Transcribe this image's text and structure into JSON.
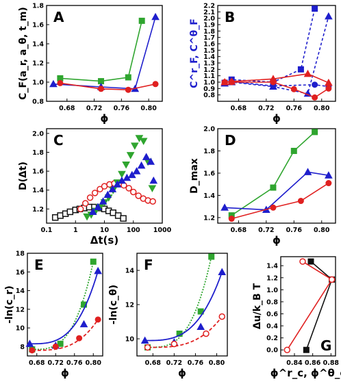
{
  "chart_data": [
    {
      "panel": "A",
      "type": "line",
      "ylabel": "C_F(a_r, a_θ, t_m)",
      "xlabel": "ϕ",
      "xlim": [
        0.65,
        0.82
      ],
      "ylim": [
        0.8,
        1.8
      ],
      "xticks": [
        "0.68",
        "0.72",
        "0.76",
        "0.80"
      ],
      "yticks": [
        "0.8",
        "1.0",
        "1.2",
        "1.4",
        "1.6",
        "1.8"
      ],
      "series": [
        {
          "color": "#2fa52f",
          "marker": "square",
          "x": [
            0.67,
            0.73,
            0.77,
            0.79
          ],
          "y": [
            1.04,
            1.01,
            1.05,
            1.64
          ]
        },
        {
          "color": "#1e1ecc",
          "marker": "triangle",
          "x": [
            0.66,
            0.73,
            0.78,
            0.81
          ],
          "y": [
            0.98,
            0.95,
            0.93,
            1.68
          ]
        },
        {
          "color": "#e02020",
          "marker": "circle",
          "x": [
            0.67,
            0.73,
            0.77,
            0.81
          ],
          "y": [
            0.99,
            0.93,
            0.92,
            0.98
          ]
        }
      ]
    },
    {
      "panel": "B",
      "type": "line",
      "ylabel": "C^r_F, C^θ_F",
      "xlabel": "ϕ",
      "xlim": [
        0.65,
        0.82
      ],
      "ylim": [
        0.7,
        2.2
      ],
      "xticks": [
        "0.68",
        "0.72",
        "0.76",
        "0.80"
      ],
      "yticks": [
        "0.8",
        "0.9",
        "1.0",
        "1.1",
        "1.2",
        "1.3",
        "1.4",
        "1.5",
        "1.6",
        "1.7",
        "1.8",
        "1.9",
        "2.0",
        "2.1",
        "2.2"
      ],
      "series": [
        {
          "color": "#1e1ecc",
          "marker": "square",
          "dashed": true,
          "x": [
            0.66,
            0.67,
            0.73,
            0.77,
            0.79
          ],
          "y": [
            0.99,
            1.04,
            1.0,
            1.2,
            2.15
          ]
        },
        {
          "color": "#1e1ecc",
          "marker": "triangle",
          "dashed": true,
          "x": [
            0.66,
            0.67,
            0.73,
            0.78,
            0.81
          ],
          "y": [
            0.98,
            1.0,
            0.93,
            0.82,
            2.03
          ]
        },
        {
          "color": "#1e1ecc",
          "marker": "circle",
          "dashed": true,
          "x": [
            0.67,
            0.73,
            0.79,
            0.81
          ],
          "y": [
            1.01,
            0.94,
            0.96,
            0.93
          ]
        },
        {
          "color": "#e02020",
          "marker": "triangle",
          "dashed": false,
          "x": [
            0.66,
            0.67,
            0.73,
            0.78,
            0.81
          ],
          "y": [
            1.0,
            1.01,
            1.05,
            1.13,
            0.99
          ]
        },
        {
          "color": "#e02020",
          "marker": "circle",
          "dashed": false,
          "x": [
            0.66,
            0.67,
            0.73,
            0.76,
            0.79,
            0.81
          ],
          "y": [
            1.0,
            1.0,
            1.0,
            0.89,
            0.76,
            0.9
          ]
        }
      ]
    },
    {
      "panel": "C",
      "type": "scatter",
      "ylabel": "D(Δt)",
      "xlabel": "Δt(s)",
      "xscale": "log",
      "xlim": [
        0.1,
        1000
      ],
      "ylim": [
        1.05,
        2.05
      ],
      "xticks": [
        "0.1",
        "1",
        "10",
        "100",
        "1000"
      ],
      "yticks": [
        "1.2",
        "1.4",
        "1.6",
        "1.8",
        "2.0"
      ],
      "series": [
        {
          "color": "#111111",
          "marker": "square-open",
          "x": [
            0.2,
            0.3,
            0.45,
            0.65,
            1.0,
            1.4,
            2.0,
            3.0,
            4.5,
            6.5,
            10,
            14,
            20,
            30,
            45
          ],
          "y": [
            1.11,
            1.13,
            1.15,
            1.17,
            1.19,
            1.2,
            1.21,
            1.22,
            1.22,
            1.21,
            1.2,
            1.18,
            1.16,
            1.13,
            1.1
          ]
        },
        {
          "color": "#e02020",
          "marker": "circle-open",
          "x": [
            1.5,
            2.2,
            3.2,
            4.7,
            7,
            10,
            15,
            22,
            32,
            47,
            70,
            100,
            150,
            220,
            320,
            470
          ],
          "y": [
            1.2,
            1.26,
            1.32,
            1.37,
            1.41,
            1.44,
            1.46,
            1.47,
            1.47,
            1.45,
            1.42,
            1.38,
            1.34,
            1.31,
            1.29,
            1.28
          ]
        },
        {
          "color": "#2fa52f",
          "marker": "triangle-down",
          "x": [
            2.5,
            3.5,
            5,
            7,
            10,
            14,
            20,
            28,
            40,
            56,
            80,
            112,
            160,
            225,
            320,
            450
          ],
          "y": [
            1.12,
            1.14,
            1.18,
            1.22,
            1.27,
            1.32,
            1.4,
            1.48,
            1.57,
            1.67,
            1.77,
            1.87,
            1.95,
            1.92,
            1.7,
            1.42
          ]
        },
        {
          "color": "#1e1ecc",
          "marker": "triangle",
          "x": [
            4,
            6,
            9,
            13,
            19,
            28,
            40,
            60,
            90,
            130,
            190,
            280,
            400,
            500
          ],
          "y": [
            1.17,
            1.22,
            1.28,
            1.35,
            1.41,
            1.46,
            1.5,
            1.53,
            1.56,
            1.6,
            1.66,
            1.75,
            1.7,
            1.5
          ]
        }
      ]
    },
    {
      "panel": "D",
      "type": "line",
      "ylabel": "D_max",
      "xlabel": "ϕ",
      "xlim": [
        0.65,
        0.82
      ],
      "ylim": [
        1.15,
        2.0
      ],
      "xticks": [
        "0.68",
        "0.72",
        "0.76",
        "0.80"
      ],
      "yticks": [
        "1.2",
        "1.4",
        "1.6",
        "1.8",
        "2.0"
      ],
      "series": [
        {
          "color": "#2fa52f",
          "marker": "square",
          "x": [
            0.67,
            0.73,
            0.76,
            0.79
          ],
          "y": [
            1.22,
            1.47,
            1.8,
            1.97
          ]
        },
        {
          "color": "#1e1ecc",
          "marker": "triangle",
          "x": [
            0.66,
            0.72,
            0.78,
            0.81
          ],
          "y": [
            1.29,
            1.27,
            1.61,
            1.58
          ]
        },
        {
          "color": "#e02020",
          "marker": "circle",
          "x": [
            0.67,
            0.73,
            0.77,
            0.81
          ],
          "y": [
            1.19,
            1.29,
            1.35,
            1.51
          ]
        }
      ]
    },
    {
      "panel": "E",
      "type": "scatter",
      "ylabel": "-ln(c_r)",
      "xlabel": "ϕ",
      "xlim": [
        0.66,
        0.82
      ],
      "ylim": [
        7,
        18
      ],
      "xticks": [
        "0.68",
        "0.72",
        "0.76",
        "0.80"
      ],
      "yticks": [
        "8",
        "10",
        "12",
        "14",
        "16",
        "18"
      ],
      "series": [
        {
          "color": "#2fa52f",
          "marker": "square",
          "fit": "dotted",
          "x": [
            0.67,
            0.73,
            0.78,
            0.8
          ],
          "y": [
            7.7,
            8.3,
            12.5,
            17.1
          ]
        },
        {
          "color": "#1e1ecc",
          "marker": "triangle",
          "fit": "solid",
          "x": [
            0.665,
            0.72,
            0.78,
            0.81
          ],
          "y": [
            8.3,
            8.1,
            10.4,
            16.1
          ]
        },
        {
          "color": "#e02020",
          "marker": "circle",
          "fit": "dashed",
          "x": [
            0.67,
            0.72,
            0.77,
            0.81
          ],
          "y": [
            7.6,
            8.0,
            8.9,
            10.9
          ]
        }
      ]
    },
    {
      "panel": "F",
      "type": "scatter",
      "ylabel": "-ln(c_θ)",
      "xlabel": "ϕ",
      "xlim": [
        0.65,
        0.82
      ],
      "ylim": [
        9,
        15
      ],
      "xticks": [
        "0.68",
        "0.72",
        "0.76",
        "0.80"
      ],
      "yticks": [
        "10",
        "12",
        "14"
      ],
      "series": [
        {
          "color": "#2fa52f",
          "marker": "square",
          "fit": "dotted",
          "x": [
            0.67,
            0.73,
            0.77,
            0.79
          ],
          "y": [
            9.5,
            10.3,
            11.6,
            14.8
          ]
        },
        {
          "color": "#1e1ecc",
          "marker": "triangle",
          "fit": "solid",
          "x": [
            0.665,
            0.72,
            0.77,
            0.81
          ],
          "y": [
            9.9,
            9.8,
            10.7,
            13.9
          ]
        },
        {
          "color": "#e02020",
          "marker": "circle-open",
          "fit": "dashed",
          "x": [
            0.67,
            0.72,
            0.78,
            0.81
          ],
          "y": [
            9.5,
            9.7,
            10.3,
            11.3
          ]
        }
      ]
    },
    {
      "panel": "G",
      "type": "line",
      "ylabel": "Δu/k_B T",
      "xlabel": "ϕ^r_c, ϕ^θ_c",
      "xlim": [
        0.825,
        0.885
      ],
      "ylim": [
        -0.1,
        1.55
      ],
      "xticks": [
        "0.84",
        "0.86",
        "0.88"
      ],
      "yticks": [
        "0.0",
        "0.2",
        "0.4",
        "0.6",
        "0.8",
        "1.0",
        "1.2",
        "1.4"
      ],
      "series": [
        {
          "color": "#111111",
          "marker": "square",
          "x": [
            0.853,
            0.881,
            0.858
          ],
          "y": [
            0.0,
            1.17,
            1.47
          ]
        },
        {
          "color": "#e02020",
          "marker": "circle-open",
          "x": [
            0.832,
            0.881,
            0.849
          ],
          "y": [
            0.0,
            1.17,
            1.47
          ]
        }
      ]
    }
  ]
}
